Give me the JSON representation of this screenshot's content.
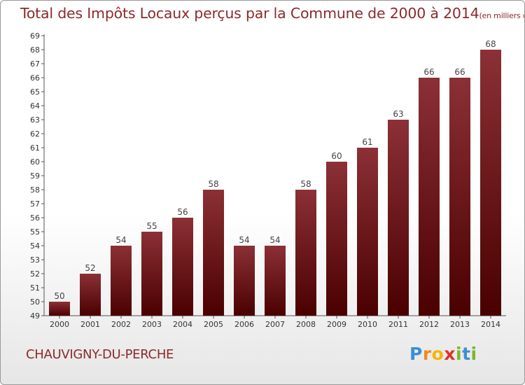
{
  "title": "Total des Impôts Locaux perçus par la Commune de 2000 à 2014",
  "title_unit": "(en milliers d'€)",
  "commune": "CHAUVIGNY-DU-PERCHE",
  "logo": {
    "letters": [
      "P",
      "r",
      "o",
      "x",
      "i",
      "t",
      "i"
    ],
    "colors": [
      "#3b8fd6",
      "#f08a1c",
      "#f2b705",
      "#e0312b",
      "#79b829",
      "#3b8fd6",
      "#79b829"
    ]
  },
  "colors": {
    "bar_top": "#8b3036",
    "bar_bottom": "#4a0000",
    "text": "#8b2a2a",
    "axis_text": "#333333"
  },
  "chart_data": {
    "type": "bar",
    "categories": [
      "2000",
      "2001",
      "2002",
      "2003",
      "2004",
      "2005",
      "2006",
      "2007",
      "2008",
      "2009",
      "2010",
      "2011",
      "2012",
      "2013",
      "2014"
    ],
    "values": [
      50,
      52,
      54,
      55,
      56,
      58,
      54,
      54,
      58,
      60,
      61,
      63,
      66,
      66,
      68
    ],
    "ylim": [
      49,
      69
    ],
    "yticks": [
      49,
      50,
      51,
      52,
      53,
      54,
      55,
      56,
      57,
      58,
      59,
      60,
      61,
      62,
      63,
      64,
      65,
      66,
      67,
      68,
      69
    ],
    "xlabel": "",
    "ylabel": "",
    "grid": false
  }
}
